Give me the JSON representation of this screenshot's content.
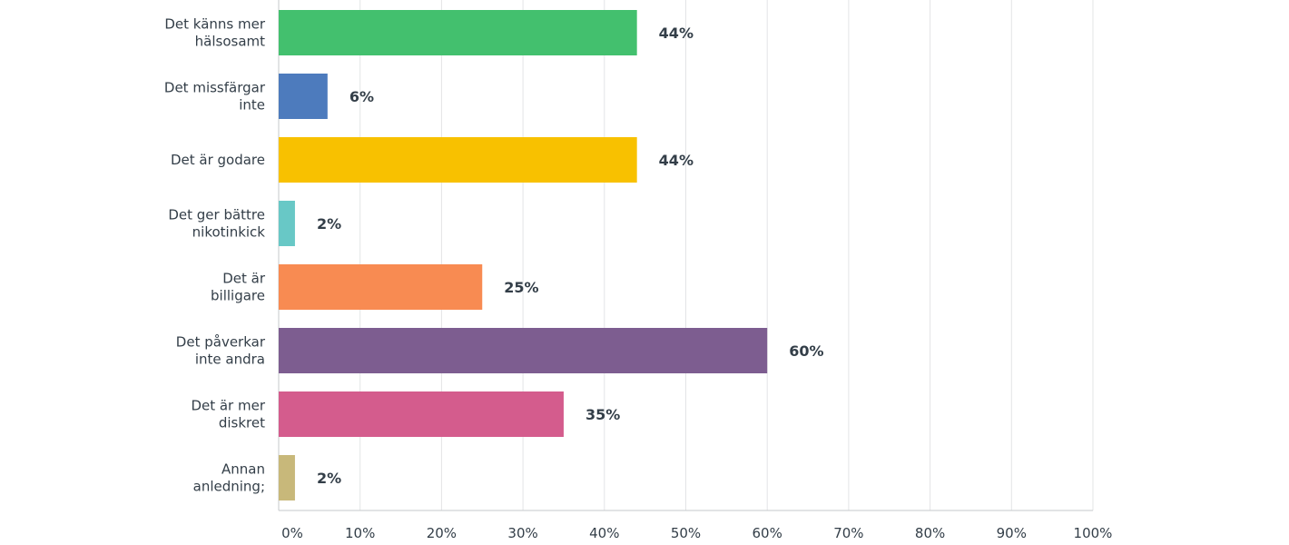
{
  "chart_data": {
    "type": "bar",
    "orientation": "horizontal",
    "categories": [
      [
        "Det känns mer",
        "hälsosamt"
      ],
      [
        "Det missfärgar",
        "inte"
      ],
      [
        "Det är godare"
      ],
      [
        "Det ger bättre",
        "nikotinkick"
      ],
      [
        "Det är",
        "billigare"
      ],
      [
        "Det påverkar",
        "inte andra"
      ],
      [
        "Det är mer",
        "diskret"
      ],
      [
        "Annan",
        "anledning;"
      ]
    ],
    "values": [
      44,
      6,
      44,
      2,
      25,
      60,
      35,
      2
    ],
    "value_labels": [
      "44%",
      "6%",
      "44%",
      "2%",
      "25%",
      "60%",
      "35%",
      "2%"
    ],
    "colors": [
      "#43c06e",
      "#4d7bbd",
      "#f8c100",
      "#68c8c6",
      "#f88b52",
      "#7d5d90",
      "#d45c8d",
      "#c8b87a"
    ],
    "xlim": [
      0,
      100
    ],
    "xticks": [
      0,
      10,
      20,
      30,
      40,
      50,
      60,
      70,
      80,
      90,
      100
    ],
    "xtick_labels": [
      "0%",
      "10%",
      "20%",
      "30%",
      "40%",
      "50%",
      "60%",
      "70%",
      "80%",
      "90%",
      "100%"
    ],
    "grid": true,
    "legend": "none"
  }
}
